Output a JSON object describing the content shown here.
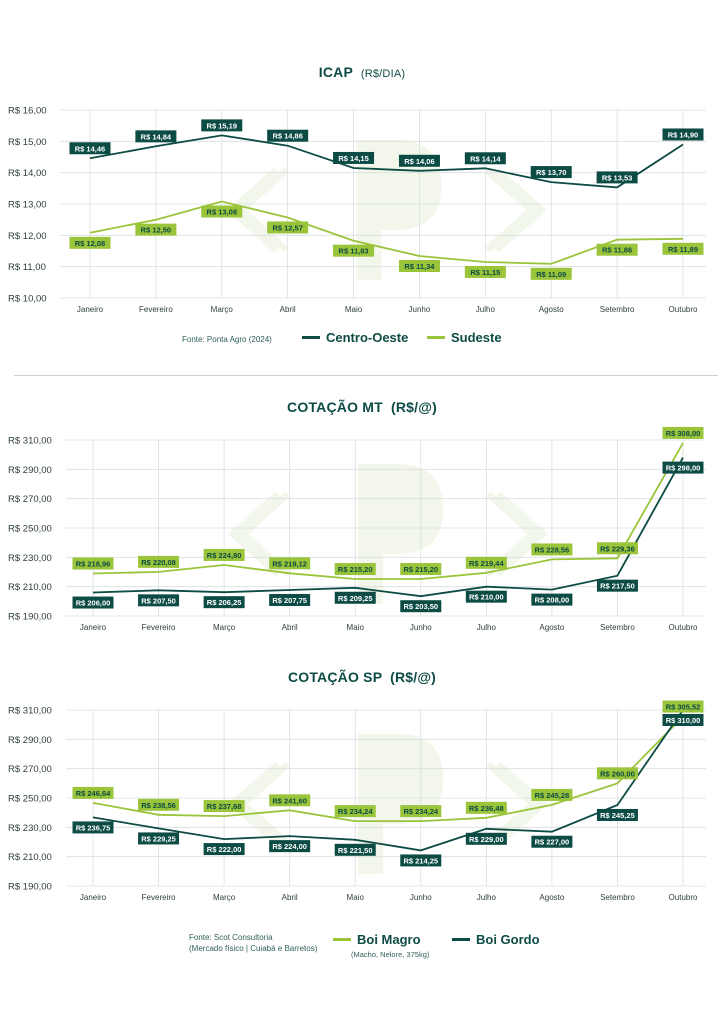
{
  "colors": {
    "dark": "#0d4b45",
    "light": "#9ac43a",
    "grid": "#d9dfde",
    "axis_text": "#2f3f3d",
    "watermark": "#e8f0dc"
  },
  "charts": {
    "icap": {
      "title": "ICAP",
      "unit": "(R$/DIA)",
      "source": "Fonte: Ponta Agro (2024)",
      "legend": [
        "Centro-Oeste",
        "Sudeste"
      ]
    },
    "mt": {
      "title": "COTAÇÃO MT",
      "unit": "(R$/@)"
    },
    "sp": {
      "title": "COTAÇÃO SP",
      "unit": "(R$/@)",
      "source_line1": "Fonte: Scot Consultoria",
      "source_line2": "(Mercado físico | Cuiabá e Barretos)",
      "legend": [
        "Boi Magro",
        "Boi Gordo"
      ],
      "legend_sub": "(Macho, Nelore, 375kg)"
    }
  },
  "chart_data": [
    {
      "type": "line",
      "title": "ICAP (R$/DIA)",
      "categories": [
        "Janeiro",
        "Fevereiro",
        "Março",
        "Abril",
        "Maio",
        "Junho",
        "Julho",
        "Agosto",
        "Setembro",
        "Outubro"
      ],
      "ylim": [
        10,
        16
      ],
      "yticks": [
        "R$ 10,00",
        "R$ 11,00",
        "R$ 12,00",
        "R$ 13,00",
        "R$ 14,00",
        "R$ 15,00",
        "R$ 16,00"
      ],
      "grid": true,
      "series": [
        {
          "name": "Centro-Oeste",
          "color": "#0d4b45",
          "values": [
            14.46,
            14.84,
            15.19,
            14.86,
            14.15,
            14.06,
            14.14,
            13.7,
            13.53,
            14.9
          ],
          "labels": [
            "R$ 14,46",
            "R$ 14,84",
            "R$ 15,19",
            "R$ 14,86",
            "R$ 14,15",
            "R$ 14,06",
            "R$ 14,14",
            "R$ 13,70",
            "R$ 13,53",
            "R$ 14,90"
          ],
          "label_pos": "above"
        },
        {
          "name": "Sudeste",
          "color": "#9ac43a",
          "values": [
            12.08,
            12.5,
            13.08,
            12.57,
            11.83,
            11.34,
            11.15,
            11.09,
            11.86,
            11.89
          ],
          "labels": [
            "R$ 12,08",
            "R$ 12,50",
            "R$ 13,08",
            "R$ 12,57",
            "R$ 11,83",
            "R$ 11,34",
            "R$ 11,15",
            "R$ 11,09",
            "R$ 11,86",
            "R$ 11,89"
          ],
          "label_pos": "below"
        }
      ]
    },
    {
      "type": "line",
      "title": "COTAÇÃO MT (R$/@)",
      "categories": [
        "Janeiro",
        "Fevereiro",
        "Março",
        "Abril",
        "Maio",
        "Junho",
        "Julho",
        "Agosto",
        "Setembro",
        "Outubro"
      ],
      "ylim": [
        190,
        310
      ],
      "yticks": [
        "R$ 190,00",
        "R$ 210,00",
        "R$ 230,00",
        "R$ 250,00",
        "R$ 270,00",
        "R$ 290,00",
        "R$ 310,00"
      ],
      "grid": true,
      "series": [
        {
          "name": "Boi Magro",
          "color": "#9ac43a",
          "values": [
            218.96,
            220.08,
            224.8,
            219.12,
            215.2,
            215.2,
            219.44,
            228.56,
            229.36,
            308.0
          ],
          "labels": [
            "R$ 218,96",
            "R$ 220,08",
            "R$ 224,80",
            "R$ 219,12",
            "R$ 215,20",
            "R$ 215,20",
            "R$ 219,44",
            "R$ 228,56",
            "R$ 229,36",
            "R$ 308,00"
          ],
          "label_pos": "above"
        },
        {
          "name": "Boi Gordo",
          "color": "#0d4b45",
          "values": [
            206.0,
            207.5,
            206.25,
            207.75,
            209.25,
            203.5,
            210.0,
            208.0,
            217.5,
            298.0
          ],
          "labels": [
            "R$ 206,00",
            "R$ 207,50",
            "R$ 206,25",
            "R$ 207,75",
            "R$ 209,25",
            "R$ 203,50",
            "R$ 210,00",
            "R$ 208,00",
            "R$ 217,50",
            "R$ 298,00"
          ],
          "label_pos": "below"
        }
      ]
    },
    {
      "type": "line",
      "title": "COTAÇÃO SP (R$/@)",
      "categories": [
        "Janeiro",
        "Fevereiro",
        "Março",
        "Abril",
        "Maio",
        "Junho",
        "Julho",
        "Agosto",
        "Setembro",
        "Outubro"
      ],
      "ylim": [
        190,
        310
      ],
      "yticks": [
        "R$ 190,00",
        "R$ 210,00",
        "R$ 230,00",
        "R$ 250,00",
        "R$ 270,00",
        "R$ 290,00",
        "R$ 310,00"
      ],
      "grid": true,
      "series": [
        {
          "name": "Boi Magro",
          "color": "#9ac43a",
          "values": [
            246.64,
            238.56,
            237.68,
            241.6,
            234.24,
            234.24,
            236.48,
            245.28,
            260.0,
            305.52
          ],
          "labels": [
            "R$ 246,64",
            "R$ 238,56",
            "R$ 237,68",
            "R$ 241,60",
            "R$ 234,24",
            "R$ 234,24",
            "R$ 236,48",
            "R$ 245,28",
            "R$ 260,00",
            "R$ 305,52"
          ],
          "label_pos": "above"
        },
        {
          "name": "Boi Gordo",
          "color": "#0d4b45",
          "values": [
            236.75,
            229.25,
            222.0,
            224.0,
            221.5,
            214.25,
            229.0,
            227.0,
            245.25,
            310.0
          ],
          "labels": [
            "R$ 236,75",
            "R$ 229,25",
            "R$ 222,00",
            "R$ 224,00",
            "R$ 221,50",
            "R$ 214,25",
            "R$ 229,00",
            "R$ 227,00",
            "R$ 245,25",
            "R$ 310,00"
          ],
          "label_pos": "below"
        }
      ]
    }
  ]
}
